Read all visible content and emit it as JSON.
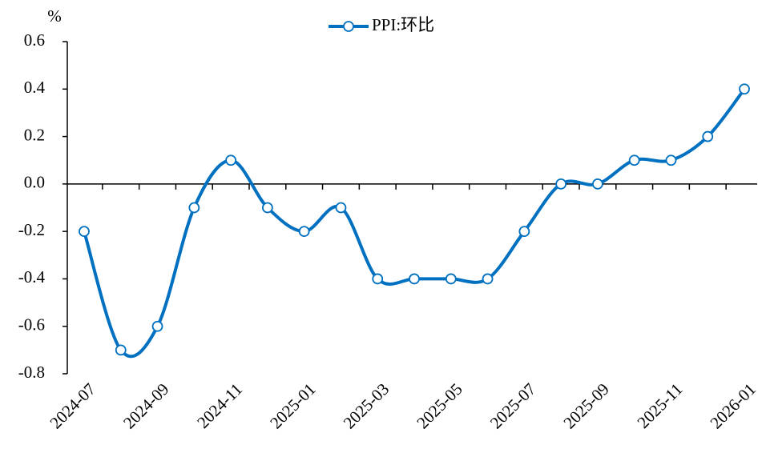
{
  "chart_data": {
    "type": "line",
    "y_label": "%",
    "categories": [
      "2024-07",
      null,
      "2024-09",
      null,
      "2024-11",
      null,
      "2025-01",
      null,
      "2025-03",
      null,
      "2025-05",
      null,
      "2025-07",
      null,
      "2025-09",
      null,
      "2025-11",
      null,
      "2026-01"
    ],
    "series": [
      {
        "name": "PPI:环比",
        "color": "#0070c0",
        "values": [
          -0.2,
          -0.7,
          -0.6,
          -0.1,
          0.1,
          -0.1,
          -0.2,
          -0.1,
          -0.4,
          -0.4,
          -0.4,
          -0.4,
          -0.2,
          0.0,
          0.0,
          0.1,
          0.1,
          0.2,
          0.4
        ]
      }
    ],
    "ylim": [
      -0.8,
      0.6
    ],
    "yticks": [
      -0.8,
      -0.6,
      -0.4,
      -0.2,
      {
        "value": 0,
        "label": "0.0"
      },
      0.2,
      0.4,
      0.6
    ],
    "legend": "top"
  }
}
